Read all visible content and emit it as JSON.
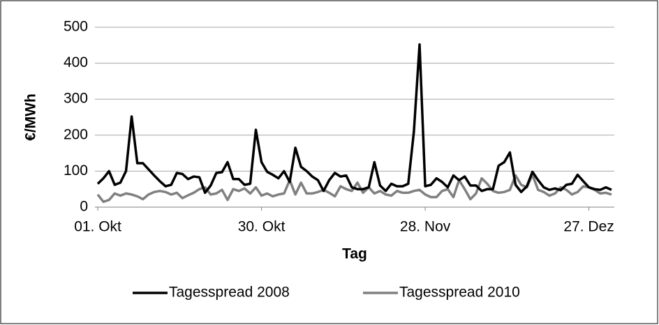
{
  "chart_data": {
    "type": "line",
    "categories": [
      "01. Okt",
      null,
      null,
      null,
      null,
      null,
      null,
      null,
      null,
      null,
      null,
      null,
      null,
      null,
      null,
      null,
      null,
      null,
      null,
      null,
      null,
      null,
      null,
      null,
      null,
      null,
      null,
      null,
      null,
      "30. Okt",
      null,
      null,
      null,
      null,
      null,
      null,
      null,
      null,
      null,
      null,
      null,
      null,
      null,
      null,
      null,
      null,
      null,
      null,
      null,
      null,
      null,
      null,
      null,
      null,
      null,
      null,
      null,
      null,
      "28. Nov",
      null,
      null,
      null,
      null,
      null,
      null,
      null,
      null,
      null,
      null,
      null,
      null,
      null,
      null,
      null,
      null,
      null,
      null,
      null,
      null,
      null,
      null,
      null,
      null,
      null,
      null,
      null,
      null,
      "27. Dez",
      null,
      null,
      null,
      null
    ],
    "series": [
      {
        "name": "Tagesspread 2008",
        "color": "#000000",
        "values": [
          65,
          80,
          100,
          62,
          68,
          100,
          252,
          122,
          122,
          105,
          88,
          72,
          58,
          62,
          95,
          92,
          78,
          85,
          83,
          40,
          60,
          95,
          97,
          125,
          78,
          78,
          62,
          65,
          215,
          125,
          98,
          90,
          80,
          100,
          70,
          165,
          112,
          100,
          85,
          75,
          45,
          75,
          95,
          85,
          88,
          55,
          50,
          50,
          55,
          125,
          60,
          45,
          65,
          58,
          58,
          65,
          210,
          452,
          58,
          62,
          80,
          70,
          55,
          88,
          75,
          85,
          60,
          60,
          45,
          50,
          50,
          115,
          125,
          152,
          62,
          42,
          58,
          98,
          75,
          55,
          48,
          52,
          47,
          62,
          65,
          90,
          72,
          55,
          50,
          48,
          55,
          48
        ]
      },
      {
        "name": "Tagesspread 2010",
        "color": "#808080",
        "values": [
          35,
          15,
          20,
          38,
          32,
          38,
          35,
          30,
          22,
          35,
          42,
          45,
          42,
          35,
          40,
          25,
          33,
          40,
          50,
          55,
          35,
          38,
          48,
          20,
          50,
          45,
          52,
          38,
          55,
          32,
          38,
          30,
          35,
          38,
          75,
          35,
          68,
          38,
          38,
          42,
          48,
          40,
          30,
          58,
          50,
          45,
          68,
          40,
          55,
          38,
          45,
          35,
          32,
          45,
          40,
          40,
          45,
          48,
          35,
          28,
          28,
          45,
          50,
          28,
          75,
          50,
          22,
          38,
          80,
          65,
          45,
          40,
          42,
          48,
          88,
          62,
          55,
          90,
          48,
          42,
          32,
          38,
          55,
          48,
          35,
          42,
          58,
          55,
          48,
          38,
          40,
          35
        ]
      }
    ],
    "xlabel": "Tag",
    "ylabel": "€/MWh",
    "ylim": [
      0,
      500
    ],
    "yticks": [
      0,
      100,
      200,
      300,
      400,
      500
    ],
    "grid": true,
    "legend": "bottom"
  }
}
